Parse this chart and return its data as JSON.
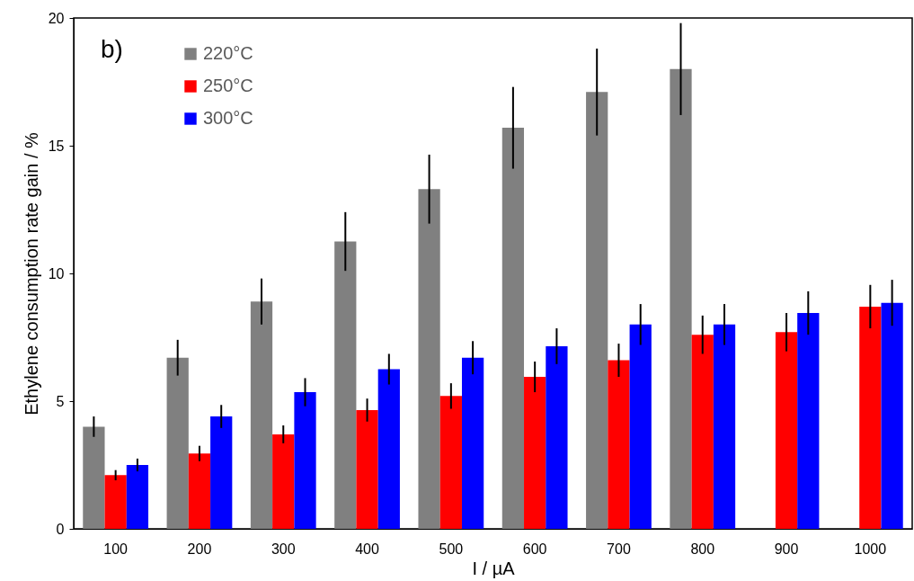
{
  "chart_data": {
    "type": "bar",
    "xlabel": "I / µA",
    "ylabel": "Ethylene consumption rate gain /  %",
    "annotations": [
      "b)"
    ],
    "categories": [
      "100",
      "200",
      "300",
      "400",
      "500",
      "600",
      "700",
      "800",
      "900",
      "1000"
    ],
    "ylim": [
      0,
      20
    ],
    "yticks": [
      0,
      5,
      10,
      15,
      20
    ],
    "grid": false,
    "legend": "top left",
    "series": [
      {
        "name": "220°C",
        "color": "#808080",
        "values": [
          4.0,
          6.7,
          8.9,
          11.25,
          13.3,
          15.7,
          17.1,
          18.0,
          null,
          null
        ],
        "errors": [
          0.4,
          0.7,
          0.9,
          1.15,
          1.35,
          1.6,
          1.7,
          1.8,
          null,
          null
        ]
      },
      {
        "name": "250°C",
        "color": "#ff0000",
        "values": [
          2.1,
          2.95,
          3.7,
          4.65,
          5.2,
          5.95,
          6.6,
          7.6,
          7.7,
          8.7
        ],
        "errors": [
          0.2,
          0.3,
          0.35,
          0.45,
          0.5,
          0.6,
          0.65,
          0.75,
          0.75,
          0.85
        ]
      },
      {
        "name": "300°C",
        "color": "#0000ff",
        "values": [
          2.5,
          4.4,
          5.35,
          6.25,
          6.7,
          7.15,
          8.0,
          8.0,
          8.45,
          8.85
        ],
        "errors": [
          0.25,
          0.45,
          0.55,
          0.6,
          0.65,
          0.7,
          0.8,
          0.8,
          0.85,
          0.9
        ]
      }
    ]
  }
}
